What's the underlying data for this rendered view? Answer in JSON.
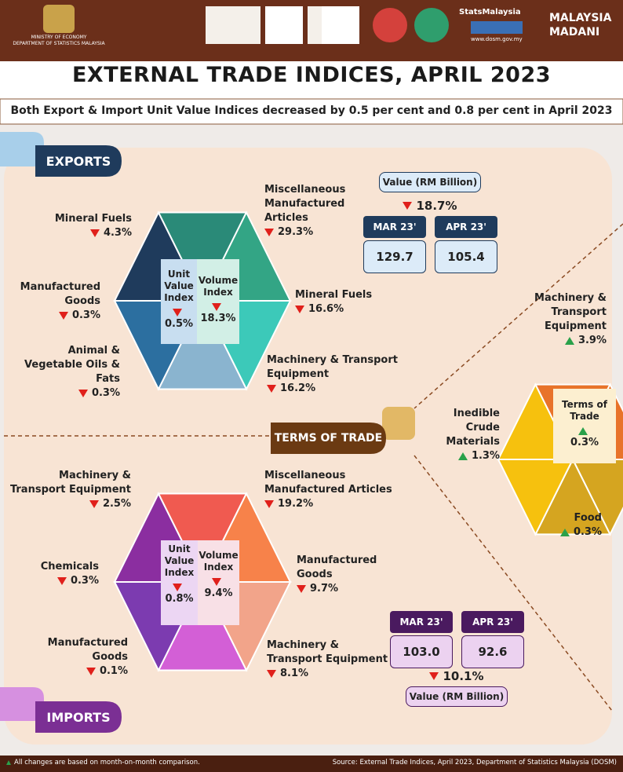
{
  "header": {
    "ministry": "MINISTRY OF ECONOMY",
    "department": "DEPARTMENT OF STATISTICS MALAYSIA",
    "brand": "StatsMalaysia",
    "website": "www.dosm.gov.my",
    "badge_top": "MALAYSIA",
    "badge_bottom": "MADANI"
  },
  "title": "EXTERNAL TRADE INDICES, APRIL 2023",
  "subtitle": "Both Export & Import Unit Value Indices decreased by 0.5 per cent and 0.8 per cent in April 2023",
  "exports": {
    "label": "EXPORTS",
    "unit_value_index": {
      "label": "Unit Value Index",
      "change": "0.5%",
      "direction": "down"
    },
    "volume_index": {
      "label": "Volume Index",
      "change": "18.3%",
      "direction": "down"
    },
    "unit_value_items": [
      {
        "name": "Mineral Fuels",
        "change": "4.3%",
        "direction": "down"
      },
      {
        "name": "Manufactured Goods",
        "change": "0.3%",
        "direction": "down"
      },
      {
        "name": "Animal & Vegetable Oils & Fats",
        "change": "0.3%",
        "direction": "down"
      }
    ],
    "volume_items": [
      {
        "name": "Miscellaneous Manufactured Articles",
        "change": "29.3%",
        "direction": "down"
      },
      {
        "name": "Mineral Fuels",
        "change": "16.6%",
        "direction": "down"
      },
      {
        "name": "Machinery & Transport Equipment",
        "change": "16.2%",
        "direction": "down"
      }
    ],
    "value": {
      "label": "Value (RM Billion)",
      "change": "18.7%",
      "direction": "down",
      "periods": [
        {
          "label": "MAR 23'",
          "value": "129.7"
        },
        {
          "label": "APR 23'",
          "value": "105.4"
        }
      ]
    }
  },
  "terms_of_trade": {
    "label": "TERMS OF TRADE",
    "index": {
      "label": "Terms of Trade",
      "change": "0.3%",
      "direction": "up"
    },
    "items": [
      {
        "name": "Machinery & Transport Equipment",
        "change": "3.9%",
        "direction": "up"
      },
      {
        "name": "Inedible Crude Materials",
        "change": "1.3%",
        "direction": "up"
      },
      {
        "name": "Food",
        "change": "0.3%",
        "direction": "up"
      }
    ]
  },
  "imports": {
    "label": "IMPORTS",
    "unit_value_index": {
      "label": "Unit Value Index",
      "change": "0.8%",
      "direction": "down"
    },
    "volume_index": {
      "label": "Volume Index",
      "change": "9.4%",
      "direction": "down"
    },
    "unit_value_items": [
      {
        "name": "Machinery & Transport Equipment",
        "change": "2.5%",
        "direction": "down"
      },
      {
        "name": "Chemicals",
        "change": "0.3%",
        "direction": "down"
      },
      {
        "name": "Manufactured Goods",
        "change": "0.1%",
        "direction": "down"
      }
    ],
    "volume_items": [
      {
        "name": "Miscellaneous Manufactured Articles",
        "change": "19.2%",
        "direction": "down"
      },
      {
        "name": "Manufactured Goods",
        "change": "9.7%",
        "direction": "down"
      },
      {
        "name": "Machinery & Transport Equipment",
        "change": "8.1%",
        "direction": "down"
      }
    ],
    "value": {
      "label": "Value (RM Billion)",
      "change": "10.1%",
      "direction": "down",
      "periods": [
        {
          "label": "MAR 23'",
          "value": "103.0"
        },
        {
          "label": "APR 23'",
          "value": "92.6"
        }
      ]
    }
  },
  "footer": {
    "note": "All changes are based on month-on-month comparison.",
    "source": "Source: External Trade Indices, April 2023, Department of Statistics Malaysia (DOSM)"
  }
}
